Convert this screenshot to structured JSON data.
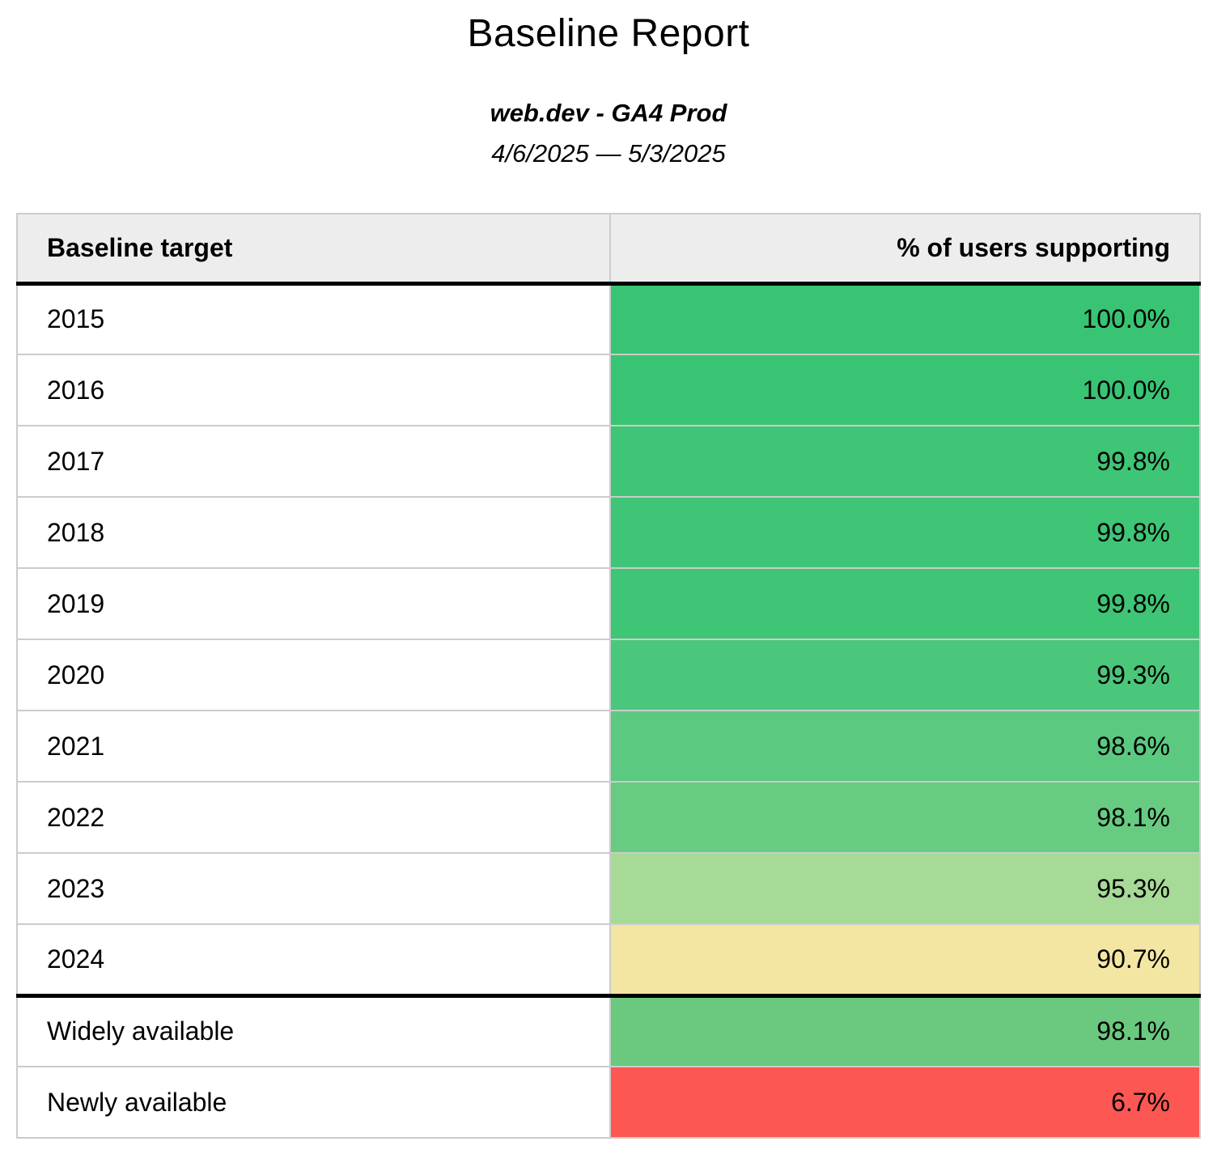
{
  "header": {
    "title": "Baseline Report",
    "subtitle": "web.dev - GA4 Prod",
    "date_range": "4/6/2025 — 5/3/2025"
  },
  "table": {
    "columns": {
      "target": "Baseline target",
      "percent": "% of users supporting"
    },
    "rows": [
      {
        "label": "2015",
        "value": "100.0%",
        "bg": "#38c473"
      },
      {
        "label": "2016",
        "value": "100.0%",
        "bg": "#38c473"
      },
      {
        "label": "2017",
        "value": "99.8%",
        "bg": "#3ec576"
      },
      {
        "label": "2018",
        "value": "99.8%",
        "bg": "#3ec576"
      },
      {
        "label": "2019",
        "value": "99.8%",
        "bg": "#3ec576"
      },
      {
        "label": "2020",
        "value": "99.3%",
        "bg": "#4ac77a"
      },
      {
        "label": "2021",
        "value": "98.6%",
        "bg": "#5bc980"
      },
      {
        "label": "2022",
        "value": "98.1%",
        "bg": "#67cb82"
      },
      {
        "label": "2023",
        "value": "95.3%",
        "bg": "#a6da96"
      },
      {
        "label": "2024",
        "value": "90.7%",
        "bg": "#f3e6a3"
      },
      {
        "label": "Widely available",
        "value": "98.1%",
        "bg": "#6bc97f"
      },
      {
        "label": "Newly available",
        "value": "6.7%",
        "bg": "#fc5753"
      }
    ]
  },
  "colors": {
    "header_bg": "#ededed",
    "grid_border": "#cccccc",
    "group_divider": "#000000",
    "scale_high": "#38c473",
    "scale_mid": "#f3e6a3",
    "scale_low": "#fc5753"
  },
  "chart_data": {
    "type": "table",
    "title": "Baseline Report",
    "subtitle": "web.dev - GA4 Prod",
    "date_range": "4/6/2025 — 5/3/2025",
    "columns": [
      "Baseline target",
      "% of users supporting"
    ],
    "categories": [
      "2015",
      "2016",
      "2017",
      "2018",
      "2019",
      "2020",
      "2021",
      "2022",
      "2023",
      "2024",
      "Widely available",
      "Newly available"
    ],
    "values": [
      100.0,
      100.0,
      99.8,
      99.8,
      99.8,
      99.3,
      98.6,
      98.1,
      95.3,
      90.7,
      98.1,
      6.7
    ],
    "value_unit": "%",
    "color_encoding": "green (high support) to yellow to red (low support)"
  }
}
